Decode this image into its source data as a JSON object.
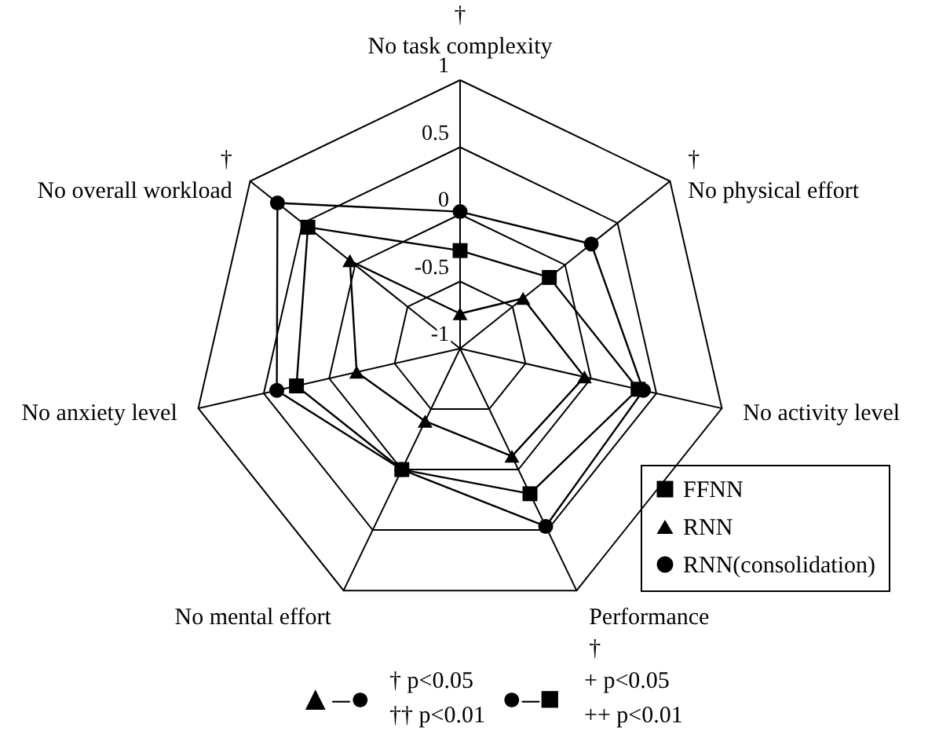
{
  "chart_data": {
    "type": "radar",
    "categories": [
      "†\nNo task complexity",
      "†\nNo physical effort",
      "No activity level",
      "Performance\n†",
      "No mental effort",
      "No anxiety level",
      "†\nNo overall workload"
    ],
    "ylim": [
      -1,
      1
    ],
    "yticks": [
      -1,
      -0.5,
      0,
      0.5,
      1
    ],
    "grid": true,
    "legend": "bottom right",
    "series": [
      {
        "name": "FFNN",
        "color": "#000000",
        "marker": "square",
        "values": [
          -0.27,
          -0.15,
          0.36,
          0.2,
          0.0,
          0.25,
          0.45
        ]
      },
      {
        "name": "RNN",
        "color": "#000000",
        "marker": "triangle",
        "values": [
          -0.74,
          -0.4,
          -0.05,
          -0.11,
          -0.4,
          -0.21,
          0.05
        ]
      },
      {
        "name": "RNN(consolidation)",
        "color": "#000000",
        "marker": "circle",
        "values": [
          0.02,
          0.25,
          0.4,
          0.47,
          0.0,
          0.4,
          0.74
        ]
      }
    ],
    "annotations": [
      "▲–●",
      "†   p<0.05",
      "†† p<0.01",
      "●–■",
      "+    p<0.05",
      "++  p<0.01"
    ]
  }
}
